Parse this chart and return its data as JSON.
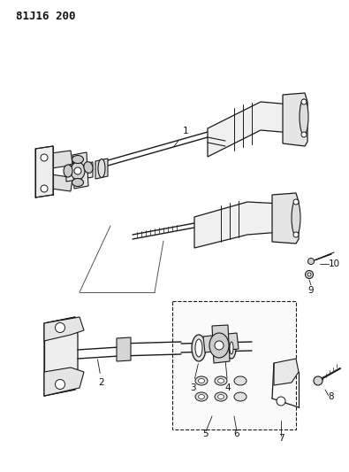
{
  "title": "81J16 200",
  "bg_color": "#ffffff",
  "line_color": "#1a1a1a",
  "label_color": "#111111",
  "font_size": 7.5,
  "title_font_size": 9
}
